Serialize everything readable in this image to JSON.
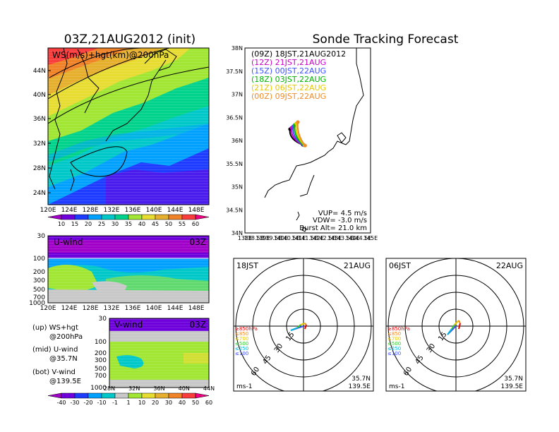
{
  "left_title": "03Z,21AUG2012 (init)",
  "right_title": "Sonde Tracking Forecast",
  "top_left_panel": {
    "label": "WS(m/s)+hgt(km)@200hPa",
    "lat_labels": [
      "44N",
      "40N",
      "36N",
      "32N",
      "28N",
      "24N"
    ],
    "lon_labels": [
      "120E",
      "124E",
      "128E",
      "132E",
      "136E",
      "140E",
      "144E",
      "148E"
    ]
  },
  "ws_colorbar": {
    "labels": [
      "10",
      "15",
      "20",
      "25",
      "30",
      "35",
      "40",
      "45",
      "50",
      "55",
      "60"
    ],
    "colors": [
      "#a000c8",
      "#6e00dc",
      "#1e3cff",
      "#00a0ff",
      "#00c8c8",
      "#00d28c",
      "#a0e632",
      "#e6dc32",
      "#e6af2d",
      "#f08228",
      "#fa3c3c",
      "#f00082"
    ]
  },
  "u_panel": {
    "label": "U-wind",
    "time": "03Z",
    "p_labels": [
      "30",
      "100",
      "200",
      "300",
      "500",
      "700",
      "1000"
    ],
    "lon_labels": [
      "120E",
      "124E",
      "128E",
      "132E",
      "136E",
      "140E",
      "144E",
      "148E"
    ]
  },
  "v_panel": {
    "label": "V-wind",
    "time": "03Z",
    "p_labels": [
      "30",
      "100",
      "200",
      "300",
      "500",
      "700",
      "1000"
    ],
    "lat_labels": [
      "28N",
      "32N",
      "36N",
      "40N",
      "44N"
    ]
  },
  "legend_notes": [
    {
      "line1": "(up) WS+hgt",
      "line2": "@200hPa"
    },
    {
      "line1": "(mid) U-wind",
      "line2": "@35.7N"
    },
    {
      "line1": "(bot) V-wind",
      "line2": "@139.5E"
    }
  ],
  "uv_colorbar": {
    "labels": [
      "-40",
      "-30",
      "-20",
      "-10",
      "-1",
      "1",
      "10",
      "20",
      "30",
      "40",
      "50",
      "60"
    ],
    "colors": [
      "#a000c8",
      "#6e00dc",
      "#1e3cff",
      "#00a0ff",
      "#00c8c8",
      "#c8c8c8",
      "#a0e632",
      "#e6dc32",
      "#e6af2d",
      "#f08228",
      "#fa3c3c",
      "#f00082"
    ]
  },
  "map": {
    "lat_labels": [
      "38N",
      "37.5N",
      "37N",
      "36.5N",
      "36N",
      "35.5N",
      "35N",
      "34.5N",
      "34N"
    ],
    "lon_labels": [
      "138E",
      "138.5E",
      "139E",
      "139.5E",
      "140E",
      "140.5E",
      "141E",
      "141.5E",
      "142E",
      "142.5E",
      "143E",
      "143.5E",
      "144E",
      "144.5E",
      "145E"
    ],
    "launches": [
      {
        "label": "(09Z) 18JST,21AUG2012",
        "color": "#000000"
      },
      {
        "label": "(12Z) 21JST,21AUG",
        "color": "#c800c8"
      },
      {
        "label": "(15Z) 00JST,22AUG",
        "color": "#3c50ff"
      },
      {
        "label": "(18Z) 03JST,22AUG",
        "color": "#00b400"
      },
      {
        "label": "(21Z) 06JST,22AUG",
        "color": "#e6c800"
      },
      {
        "label": "(00Z) 09JST,22AUG",
        "color": "#f08c28"
      }
    ],
    "vup": "VUP= 4.5 m/s",
    "vdw": "VDW= -3.0 m/s",
    "burst": "Burst Alt= 21.0 km"
  },
  "hodographs": [
    {
      "time": "18JST",
      "date": "21AUG",
      "lat": "35.7N",
      "lon": "139.5E",
      "unit": "ms-1"
    },
    {
      "time": "06JST",
      "date": "22AUG",
      "lat": "35.7N",
      "lon": "139.5E",
      "unit": "ms-1"
    }
  ],
  "hodo_rings": [
    "15",
    "30",
    "45",
    "60"
  ],
  "hodo_levels": [
    {
      "label": "≥850hPa",
      "color": "#e60000"
    },
    {
      "label": "≤850",
      "color": "#f08c28"
    },
    {
      "label": "≤700",
      "color": "#e6c800"
    },
    {
      "label": "≤500",
      "color": "#32c832"
    },
    {
      "label": "≤250",
      "color": "#00b4dc"
    },
    {
      "label": "≤100",
      "color": "#3c50ff"
    }
  ]
}
